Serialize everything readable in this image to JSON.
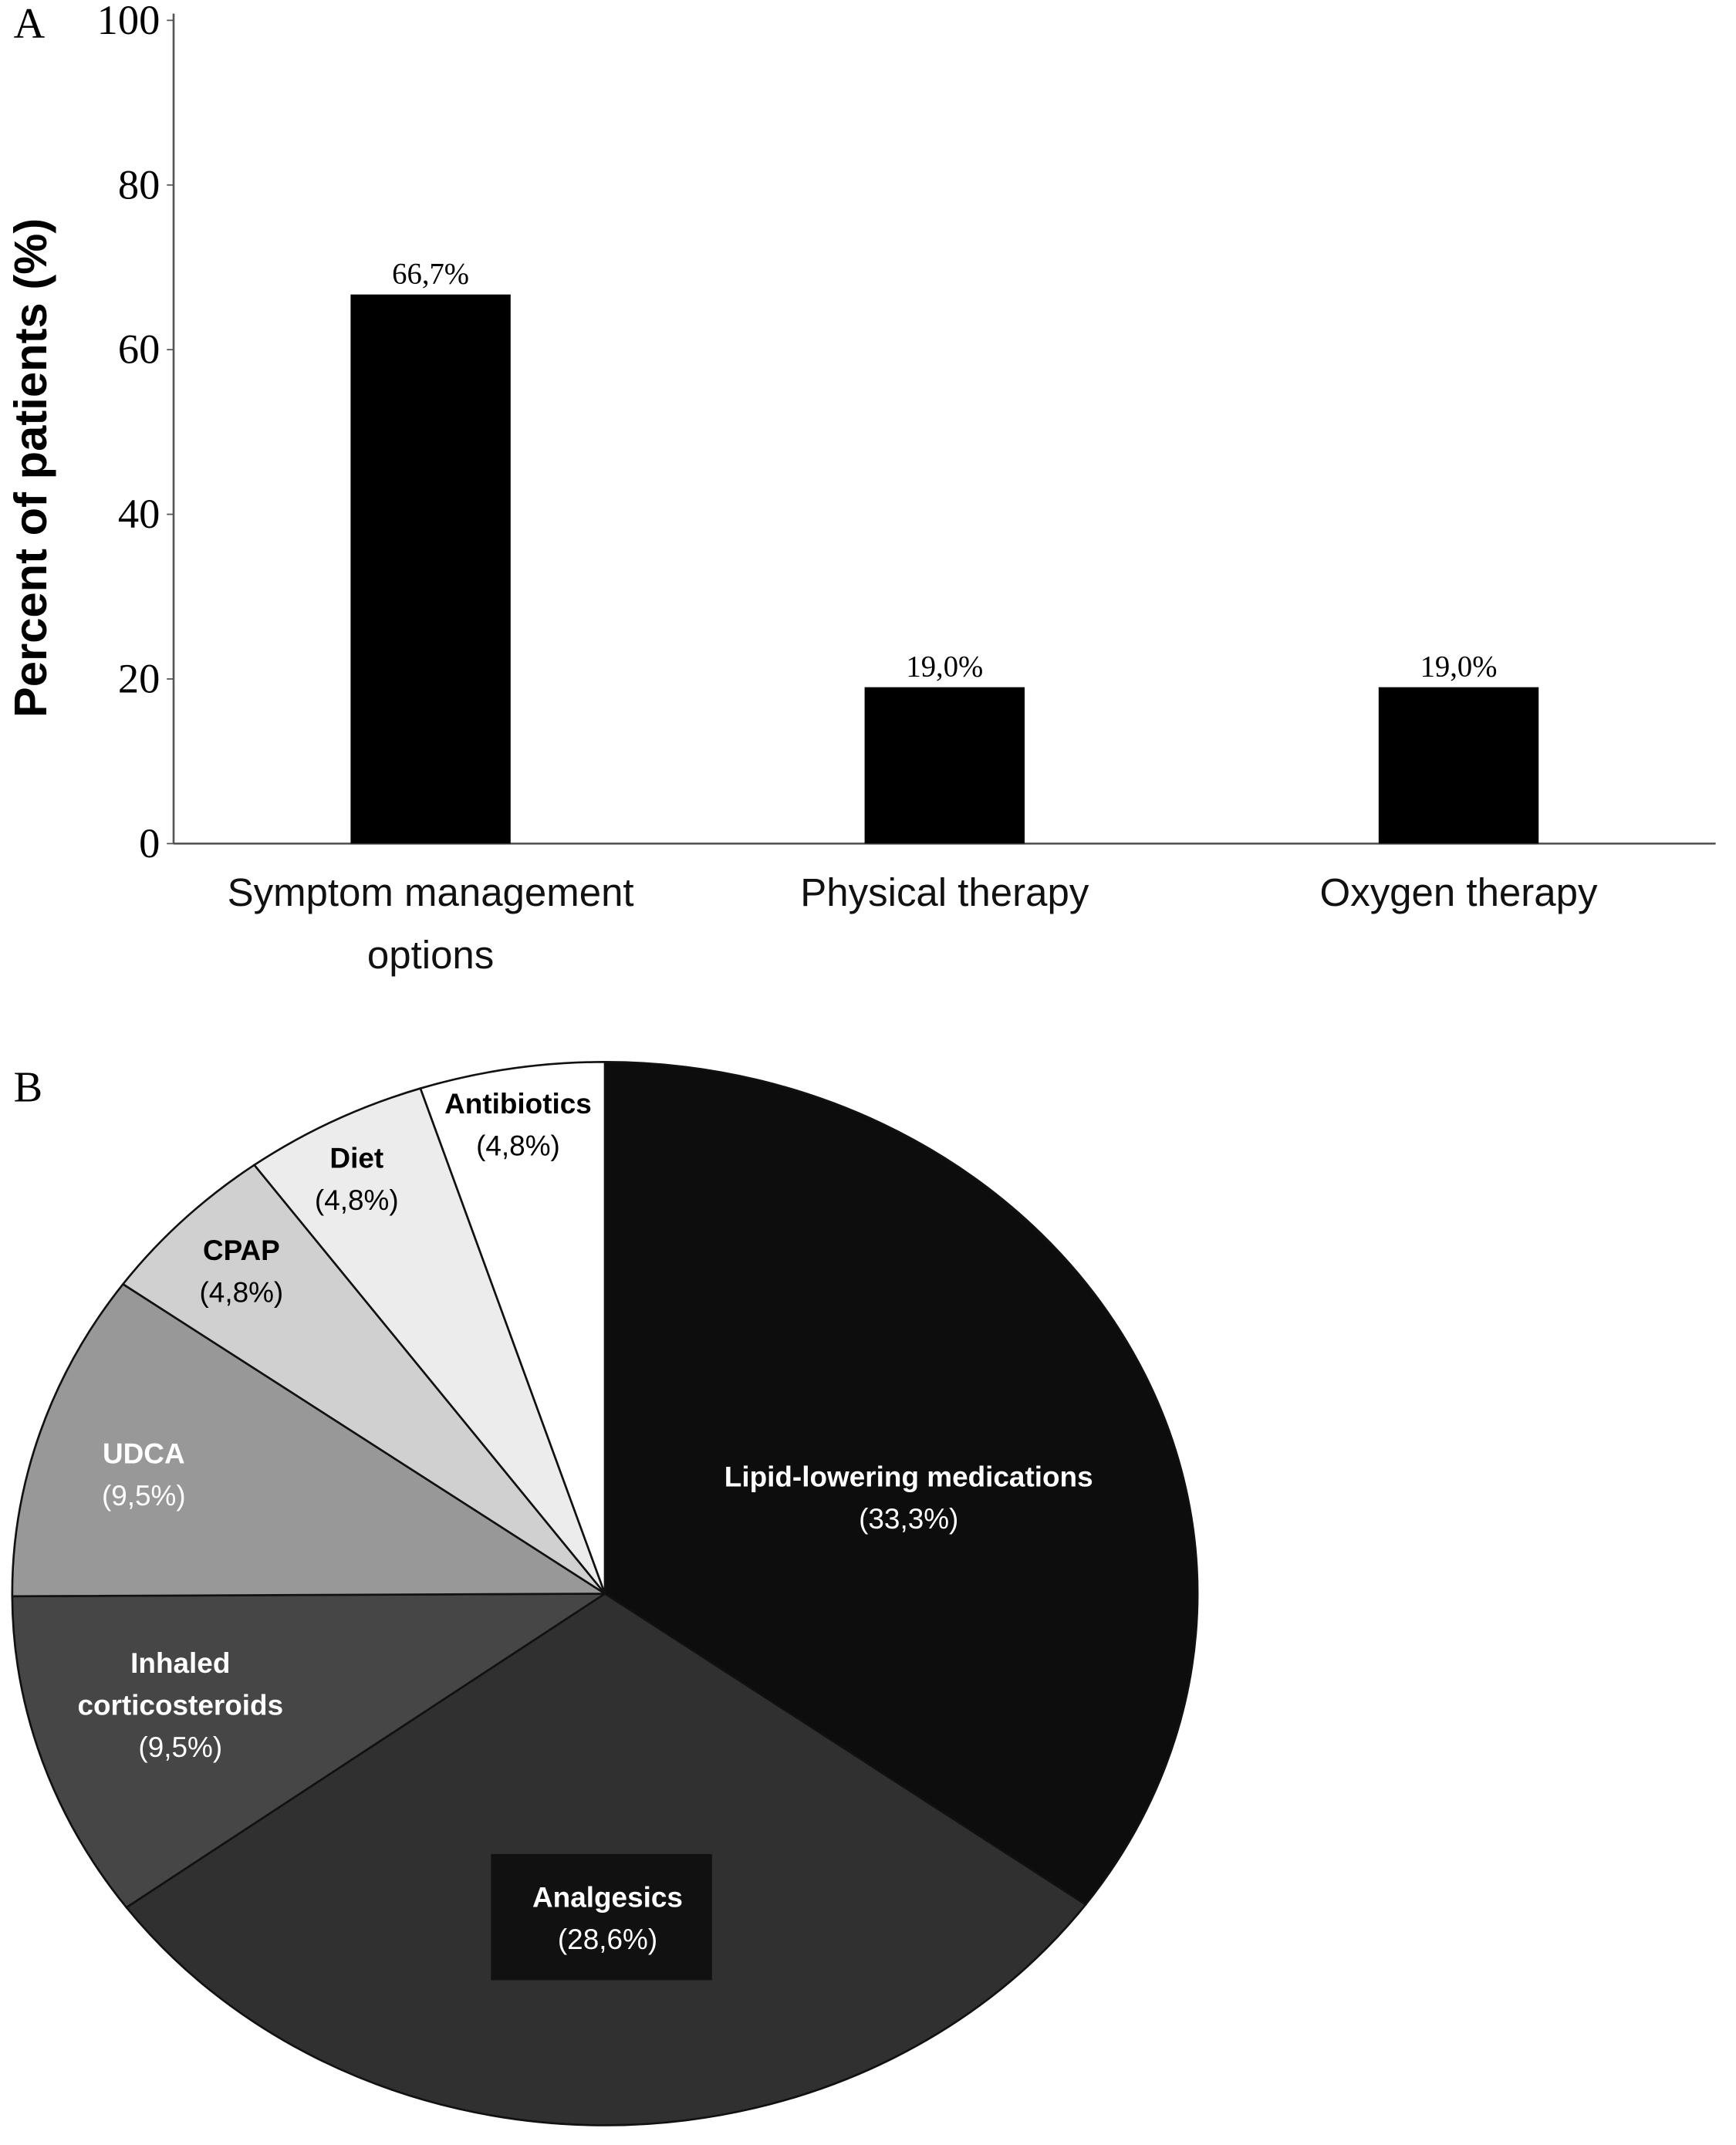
{
  "chart_data": [
    {
      "type": "bar",
      "panel": "A",
      "ylabel": "Percent of patients (%)",
      "categories": [
        "Symptom management options",
        "Physical therapy",
        "Oxygen therapy"
      ],
      "values": [
        66.7,
        19.0,
        19.0
      ],
      "value_labels": [
        "66,7%",
        "19,0%",
        "19,0%"
      ],
      "color": "#000000",
      "ylim": [
        0,
        100
      ],
      "yticks": [
        0,
        20,
        40,
        60,
        80,
        100
      ]
    },
    {
      "type": "pie",
      "panel": "B",
      "categories": [
        "Lipid-lowering medications",
        "Analgesics",
        "Inhaled corticosteroids",
        "UDCA",
        "CPAP",
        "Diet",
        "Antibiotics"
      ],
      "values": [
        33.3,
        28.6,
        9.5,
        9.5,
        4.8,
        4.8,
        4.8
      ],
      "value_labels": [
        "(33,3%)",
        "(28,6%)",
        "(9,5%)",
        "(9,5%)",
        "(4,8%)",
        "(4,8%)",
        "(4,8%)"
      ],
      "colors": [
        "#0d0d0d",
        "#303030",
        "#464646",
        "#989898",
        "#d0d0d0",
        "#ececec",
        "#ffffff"
      ]
    }
  ]
}
